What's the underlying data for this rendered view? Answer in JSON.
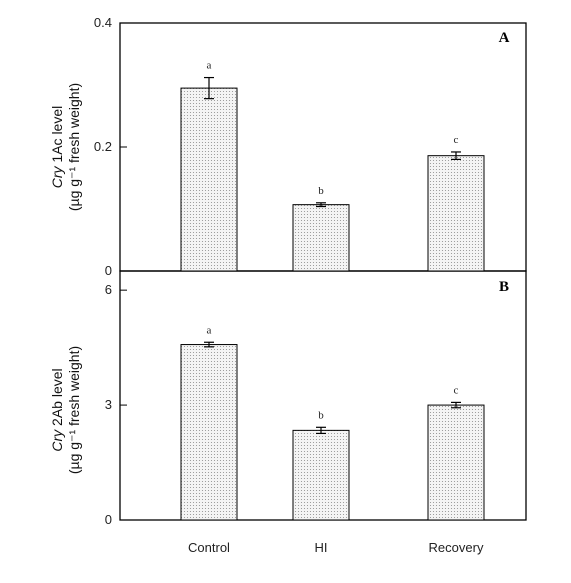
{
  "chart_data": [
    {
      "type": "bar",
      "panel_label": "A",
      "ylabel_line1_prefix": "Cry",
      "ylabel_line1_suffix": " 1Ac level",
      "ylabel_line2": "(µg g⁻¹ fresh weight)",
      "categories": [
        "Control",
        "HI",
        "Recovery"
      ],
      "values": [
        0.295,
        0.107,
        0.186
      ],
      "errors": [
        0.017,
        0.003,
        0.006
      ],
      "significance": [
        "a",
        "b",
        "c"
      ],
      "ylim": [
        0,
        0.4
      ],
      "yticks": [
        "0",
        "0.2",
        "0.4"
      ],
      "ytick_values": [
        0,
        0.2,
        0.4
      ]
    },
    {
      "type": "bar",
      "panel_label": "B",
      "ylabel_line1_prefix": "Cry",
      "ylabel_line1_suffix": " 2Ab level",
      "ylabel_line2": "(µg g⁻¹ fresh weight)",
      "categories": [
        "Control",
        "HI",
        "Recovery"
      ],
      "values": [
        4.58,
        2.34,
        3.0
      ],
      "errors": [
        0.06,
        0.08,
        0.07
      ],
      "significance": [
        "a",
        "b",
        "c"
      ],
      "ylim": [
        0,
        6.5
      ],
      "yticks": [
        "0",
        "3",
        "6"
      ],
      "ytick_values": [
        0,
        3,
        6
      ]
    }
  ],
  "colors": {
    "bar_fill": "#f2f2f2",
    "bar_dots": "#8a8a8a",
    "axis": "#000000"
  }
}
